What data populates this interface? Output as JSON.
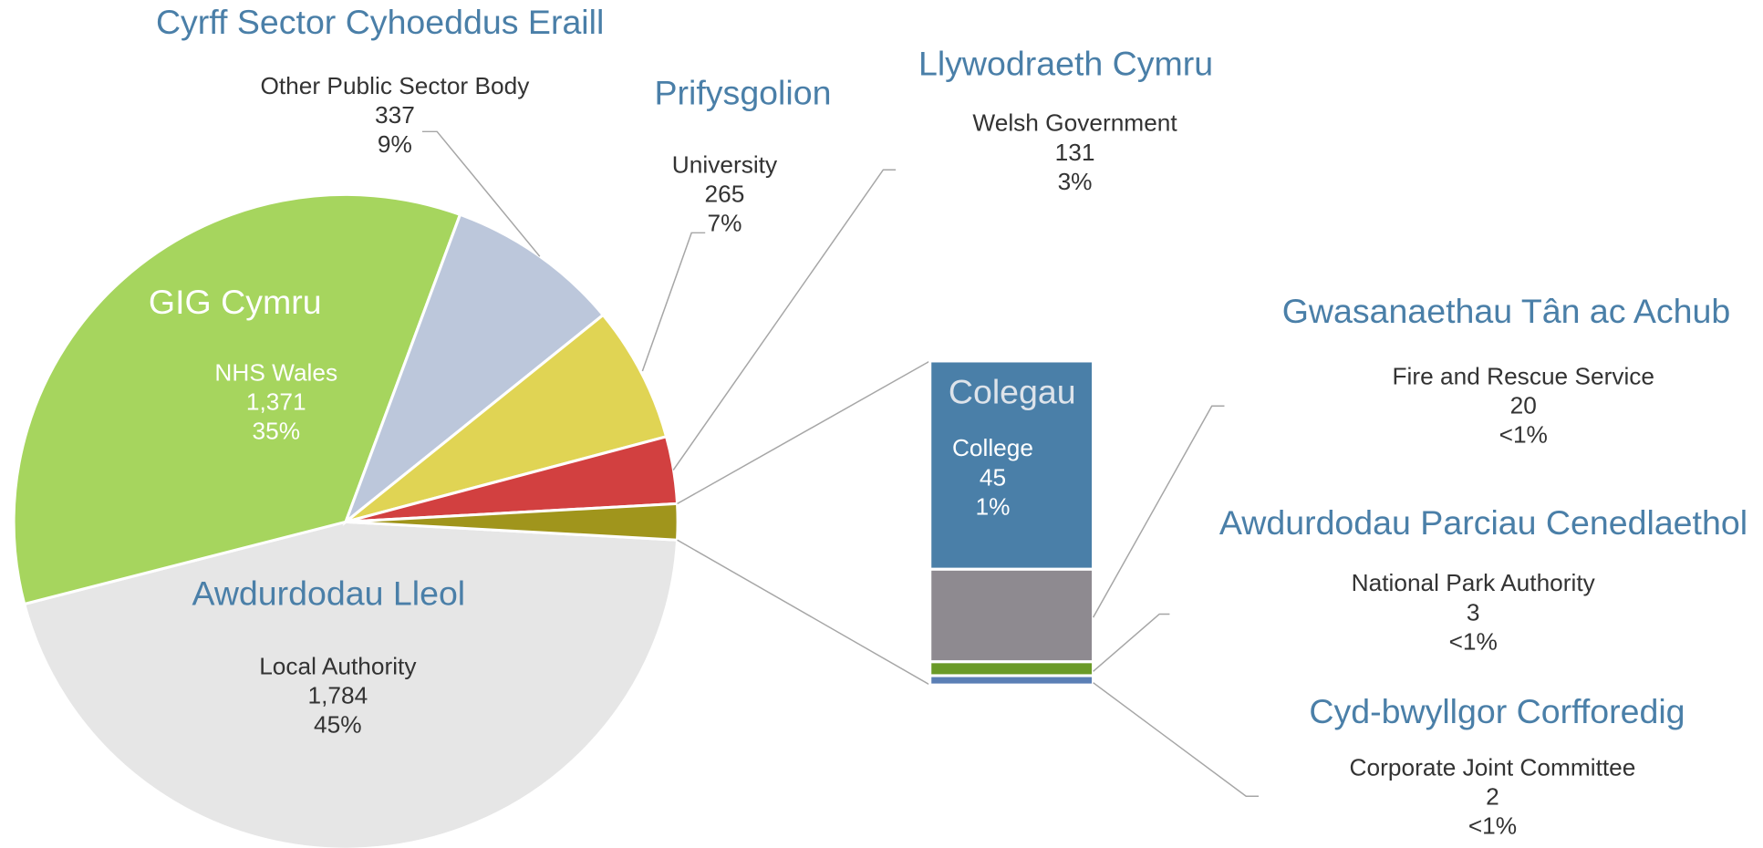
{
  "chart_data": {
    "type": "bar-of-pie",
    "welsh_names": [
      "Awdurdodau Lleol",
      "GIG Cymru",
      "Cyrff Sector Cyhoeddus Eraill",
      "Prifysgolion",
      "Llywodraeth Cymru",
      "Colegau",
      "Gwasanaethau Tân ac Achub",
      "Awdurdodau Parciau Cenedlaethol",
      "Cyd-bwyllgor Corfforedig"
    ],
    "categories": [
      "Local Authority",
      "NHS Wales",
      "Other Public Sector Body",
      "University",
      "Welsh Government",
      "College",
      "Fire and Rescue Service",
      "National Park Authority",
      "Corporate Joint Committee"
    ],
    "values": [
      1784,
      1371,
      337,
      265,
      131,
      45,
      20,
      3,
      2
    ],
    "value_labels": [
      "1,784",
      "1,371",
      "337",
      "265",
      "131",
      "45",
      "20",
      "3",
      "2"
    ],
    "percent_labels": [
      "45%",
      "35%",
      "9%",
      "7%",
      "3%",
      "1%",
      "<1%",
      "<1%",
      "<1%"
    ],
    "colors": [
      "#e6e6e6",
      "#a6d55e",
      "#bcc7db",
      "#e0d454",
      "#d24040",
      "#4a7fa8",
      "#8e8a90",
      "#6a9a27",
      "#5b7fb5"
    ],
    "other_color": "#a0951c",
    "bar_from": 5
  }
}
